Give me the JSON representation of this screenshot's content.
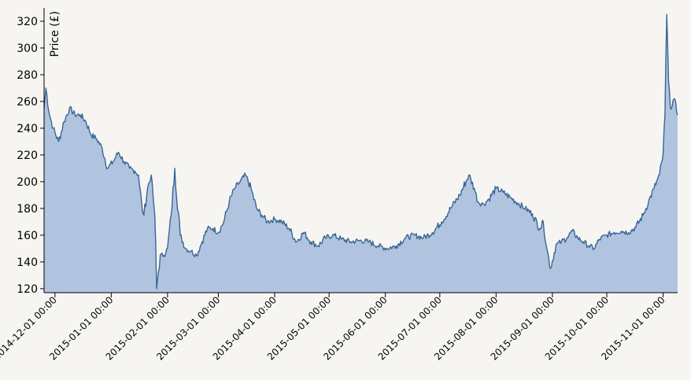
{
  "chart_data": {
    "type": "area",
    "title": "",
    "xlabel": "",
    "ylabel": "Price (£)",
    "ylim": [
      117,
      330
    ],
    "yticks": [
      120,
      140,
      160,
      180,
      200,
      220,
      240,
      260,
      280,
      300,
      320
    ],
    "xlim": [
      "2014-11-25",
      "2015-11-09"
    ],
    "xticks": [
      {
        "date": "2014-12-01",
        "label": "2014-12-01 00:00"
      },
      {
        "date": "2015-01-01",
        "label": "2015-01-01 00:00"
      },
      {
        "date": "2015-02-01",
        "label": "2015-02-01 00:00"
      },
      {
        "date": "2015-03-01",
        "label": "2015-03-01 00:00"
      },
      {
        "date": "2015-04-01",
        "label": "2015-04-01 00:00"
      },
      {
        "date": "2015-05-01",
        "label": "2015-05-01 00:00"
      },
      {
        "date": "2015-06-01",
        "label": "2015-06-01 00:00"
      },
      {
        "date": "2015-07-01",
        "label": "2015-07-01 00:00"
      },
      {
        "date": "2015-08-01",
        "label": "2015-08-01 00:00"
      },
      {
        "date": "2015-09-01",
        "label": "2015-09-01 00:00"
      },
      {
        "date": "2015-10-01",
        "label": "2015-10-01 00:00"
      },
      {
        "date": "2015-11-01",
        "label": "2015-11-01 00:00"
      }
    ],
    "grid": false,
    "colors": {
      "line": "#3a6596",
      "fill": "#b1c4df",
      "axis": "#000000"
    },
    "x": [
      "2014-11-25",
      "2014-11-26",
      "2014-11-28",
      "2014-11-30",
      "2014-12-03",
      "2014-12-06",
      "2014-12-09",
      "2014-12-12",
      "2014-12-15",
      "2014-12-18",
      "2014-12-21",
      "2014-12-24",
      "2014-12-27",
      "2014-12-30",
      "2015-01-02",
      "2015-01-05",
      "2015-01-08",
      "2015-01-11",
      "2015-01-14",
      "2015-01-16",
      "2015-01-18",
      "2015-01-19",
      "2015-01-21",
      "2015-01-23",
      "2015-01-24",
      "2015-01-25",
      "2015-01-26",
      "2015-01-28",
      "2015-01-30",
      "2015-02-01",
      "2015-02-03",
      "2015-02-05",
      "2015-02-08",
      "2015-02-11",
      "2015-02-14",
      "2015-02-17",
      "2015-02-20",
      "2015-02-23",
      "2015-02-26",
      "2015-03-01",
      "2015-03-04",
      "2015-03-07",
      "2015-03-10",
      "2015-03-13",
      "2015-03-16",
      "2015-03-19",
      "2015-03-22",
      "2015-03-25",
      "2015-03-28",
      "2015-04-01",
      "2015-04-05",
      "2015-04-09",
      "2015-04-13",
      "2015-04-17",
      "2015-04-21",
      "2015-04-25",
      "2015-04-29",
      "2015-05-03",
      "2015-05-08",
      "2015-05-13",
      "2015-05-18",
      "2015-05-23",
      "2015-05-28",
      "2015-06-02",
      "2015-06-07",
      "2015-06-12",
      "2015-06-17",
      "2015-06-22",
      "2015-06-27",
      "2015-07-02",
      "2015-07-07",
      "2015-07-12",
      "2015-07-17",
      "2015-07-20",
      "2015-07-22",
      "2015-07-25",
      "2015-07-28",
      "2015-08-01",
      "2015-08-05",
      "2015-08-09",
      "2015-08-13",
      "2015-08-17",
      "2015-08-21",
      "2015-08-25",
      "2015-08-27",
      "2015-08-29",
      "2015-08-31",
      "2015-09-03",
      "2015-09-06",
      "2015-09-09",
      "2015-09-12",
      "2015-09-15",
      "2015-09-18",
      "2015-09-21",
      "2015-09-24",
      "2015-09-27",
      "2015-10-01",
      "2015-10-05",
      "2015-10-09",
      "2015-10-13",
      "2015-10-17",
      "2015-10-21",
      "2015-10-24",
      "2015-10-27",
      "2015-10-30",
      "2015-11-01",
      "2015-11-02",
      "2015-11-03",
      "2015-11-04",
      "2015-11-05",
      "2015-11-07",
      "2015-11-09"
    ],
    "values": [
      255,
      270,
      250,
      240,
      230,
      245,
      255,
      250,
      250,
      245,
      235,
      232,
      225,
      210,
      215,
      222,
      215,
      210,
      208,
      205,
      180,
      175,
      195,
      205,
      190,
      175,
      120,
      145,
      145,
      150,
      175,
      210,
      160,
      150,
      148,
      145,
      155,
      165,
      165,
      162,
      170,
      185,
      195,
      200,
      205,
      195,
      180,
      175,
      170,
      172,
      170,
      165,
      155,
      162,
      155,
      152,
      158,
      160,
      157,
      155,
      156,
      155,
      152,
      150,
      152,
      158,
      160,
      158,
      162,
      170,
      180,
      190,
      205,
      195,
      185,
      183,
      187,
      195,
      192,
      188,
      184,
      180,
      176,
      165,
      170,
      150,
      135,
      153,
      155,
      158,
      163,
      158,
      155,
      152,
      150,
      157,
      160,
      162,
      163,
      162,
      166,
      175,
      185,
      195,
      205,
      220,
      250,
      325,
      275,
      255,
      262,
      250
    ]
  }
}
